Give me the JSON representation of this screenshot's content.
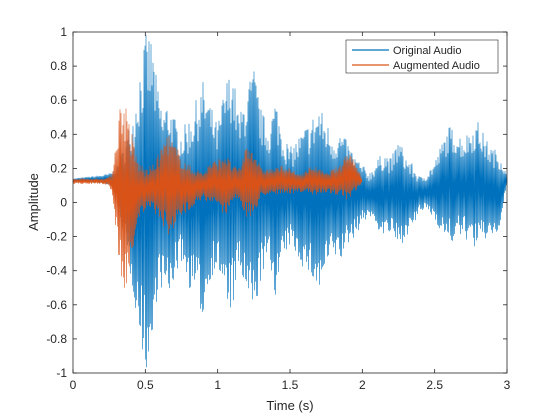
{
  "chart_data": {
    "type": "line",
    "title": "",
    "xlabel": "Time (s)",
    "ylabel": "Amplitude",
    "xlim": [
      0,
      3
    ],
    "ylim": [
      -1,
      1
    ],
    "x_ticks": [
      0,
      0.5,
      1,
      1.5,
      2,
      2.5,
      3
    ],
    "x_tick_labels": [
      "0",
      "0.5",
      "1",
      "1.5",
      "2",
      "2.5",
      "3"
    ],
    "y_ticks": [
      -1,
      -0.8,
      -0.6,
      -0.4,
      -0.2,
      0,
      0.2,
      0.4,
      0.6,
      0.8,
      1
    ],
    "y_tick_labels": [
      "-1",
      "-0.8",
      "-0.6",
      "-0.4",
      "-0.2",
      "0",
      "0.2",
      "0.4",
      "0.6",
      "0.8",
      "1"
    ],
    "grid": false,
    "legend_placement": "top-right",
    "series": [
      {
        "name": "Original Audio",
        "color": "#0072BD",
        "envelope": {
          "t": [
            0,
            0.1,
            0.2,
            0.25,
            0.3,
            0.34,
            0.38,
            0.42,
            0.46,
            0.5,
            0.53,
            0.55,
            0.58,
            0.62,
            0.66,
            0.7,
            0.75,
            0.8,
            0.85,
            0.9,
            0.95,
            1.0,
            1.05,
            1.1,
            1.15,
            1.2,
            1.25,
            1.3,
            1.35,
            1.4,
            1.45,
            1.5,
            1.55,
            1.6,
            1.65,
            1.7,
            1.75,
            1.8,
            1.85,
            1.9,
            1.95,
            2.0,
            2.05,
            2.1,
            2.15,
            2.2,
            2.25,
            2.3,
            2.35,
            2.4,
            2.45,
            2.5,
            2.55,
            2.6,
            2.65,
            2.7,
            2.75,
            2.8,
            2.85,
            2.9,
            2.95,
            3.0
          ],
          "upper": [
            0.14,
            0.15,
            0.16,
            0.17,
            0.2,
            0.3,
            0.42,
            0.55,
            0.8,
            0.98,
            1.0,
            0.95,
            0.7,
            0.55,
            0.62,
            0.5,
            0.42,
            0.5,
            0.6,
            0.72,
            0.58,
            0.45,
            0.7,
            0.8,
            0.5,
            0.68,
            0.8,
            0.55,
            0.45,
            0.62,
            0.42,
            0.32,
            0.38,
            0.44,
            0.5,
            0.58,
            0.48,
            0.4,
            0.42,
            0.35,
            0.28,
            0.22,
            0.18,
            0.25,
            0.3,
            0.26,
            0.38,
            0.28,
            0.22,
            0.15,
            0.18,
            0.24,
            0.35,
            0.45,
            0.42,
            0.38,
            0.44,
            0.48,
            0.38,
            0.32,
            0.3,
            0.15
          ],
          "lower": [
            0.12,
            0.12,
            0.11,
            0.1,
            0.05,
            -0.15,
            -0.35,
            -0.55,
            -0.8,
            -0.98,
            -1.0,
            -0.9,
            -0.55,
            -0.5,
            -0.6,
            -0.45,
            -0.35,
            -0.5,
            -0.55,
            -0.7,
            -0.45,
            -0.38,
            -0.6,
            -0.65,
            -0.4,
            -0.58,
            -0.7,
            -0.45,
            -0.35,
            -0.55,
            -0.35,
            -0.25,
            -0.32,
            -0.4,
            -0.45,
            -0.55,
            -0.4,
            -0.32,
            -0.35,
            -0.25,
            -0.2,
            -0.12,
            -0.08,
            -0.15,
            -0.2,
            -0.18,
            -0.28,
            -0.2,
            -0.15,
            -0.05,
            -0.05,
            -0.1,
            -0.18,
            -0.25,
            -0.22,
            -0.2,
            -0.25,
            -0.28,
            -0.22,
            -0.2,
            -0.18,
            0.12
          ]
        }
      },
      {
        "name": "Augmented Audio",
        "color": "#D95319",
        "envelope": {
          "t": [
            0,
            0.1,
            0.2,
            0.25,
            0.27,
            0.3,
            0.33,
            0.36,
            0.38,
            0.4,
            0.42,
            0.45,
            0.5,
            0.55,
            0.6,
            0.65,
            0.7,
            0.75,
            0.8,
            0.85,
            0.9,
            0.95,
            1.0,
            1.05,
            1.1,
            1.15,
            1.2,
            1.25,
            1.3,
            1.35,
            1.4,
            1.45,
            1.5,
            1.55,
            1.6,
            1.65,
            1.7,
            1.75,
            1.8,
            1.85,
            1.9,
            1.95,
            2.0
          ],
          "upper": [
            0.14,
            0.14,
            0.14,
            0.15,
            0.18,
            0.4,
            0.62,
            0.6,
            0.55,
            0.45,
            0.35,
            0.25,
            0.2,
            0.22,
            0.3,
            0.42,
            0.35,
            0.28,
            0.22,
            0.2,
            0.18,
            0.24,
            0.25,
            0.3,
            0.22,
            0.2,
            0.35,
            0.32,
            0.2,
            0.2,
            0.2,
            0.22,
            0.2,
            0.17,
            0.18,
            0.22,
            0.2,
            0.17,
            0.2,
            0.22,
            0.32,
            0.25,
            0.13
          ],
          "lower": [
            0.11,
            0.11,
            0.11,
            0.1,
            0.05,
            -0.2,
            -0.45,
            -0.52,
            -0.5,
            -0.4,
            -0.25,
            -0.1,
            -0.05,
            -0.05,
            -0.1,
            -0.2,
            -0.15,
            -0.1,
            -0.05,
            0.0,
            0.02,
            -0.02,
            -0.02,
            -0.08,
            0.0,
            0.02,
            -0.1,
            -0.08,
            0.03,
            0.05,
            0.05,
            0.04,
            0.05,
            0.06,
            0.06,
            0.04,
            0.05,
            0.06,
            0.05,
            0.04,
            0.0,
            0.05,
            0.12
          ]
        }
      }
    ]
  }
}
